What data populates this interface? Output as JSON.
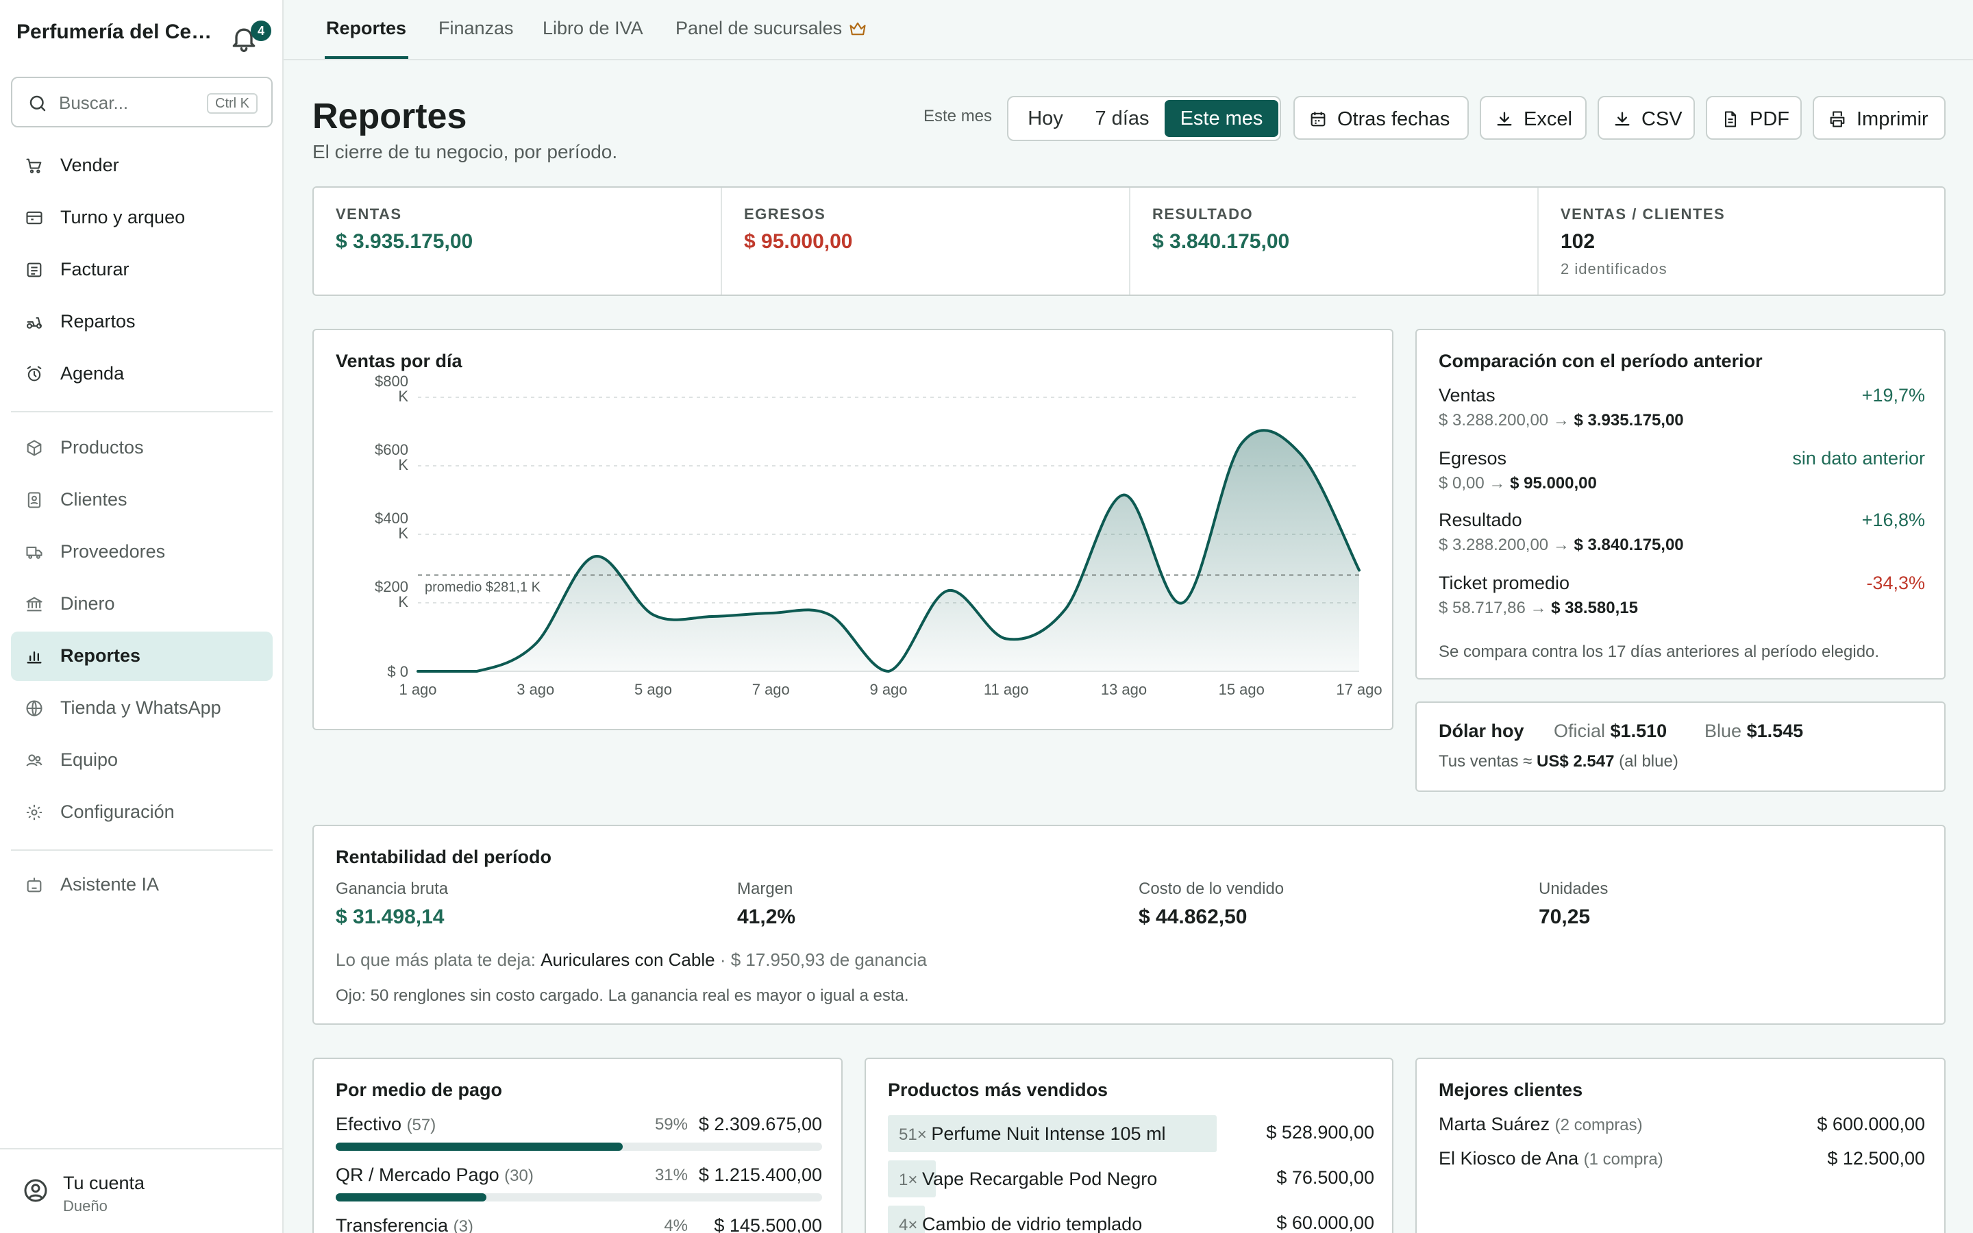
{
  "sidebar": {
    "brand": "Perfumería del Centro",
    "notifications": "4",
    "search_placeholder": "Buscar...",
    "search_shortcut": "Ctrl K",
    "items": [
      {
        "label": "Vender",
        "icon": "cart-icon"
      },
      {
        "label": "Turno y arqueo",
        "icon": "register-icon"
      },
      {
        "label": "Facturar",
        "icon": "receipt-icon"
      },
      {
        "label": "Repartos",
        "icon": "scooter-icon"
      },
      {
        "label": "Agenda",
        "icon": "alarm-clock-icon"
      },
      {
        "label": "Productos",
        "icon": "box-icon"
      },
      {
        "label": "Clientes",
        "icon": "contact-icon"
      },
      {
        "label": "Proveedores",
        "icon": "truck-icon"
      },
      {
        "label": "Dinero",
        "icon": "bank-icon"
      },
      {
        "label": "Reportes",
        "icon": "bar-chart-icon"
      },
      {
        "label": "Tienda y WhatsApp",
        "icon": "globe-icon"
      },
      {
        "label": "Equipo",
        "icon": "users-icon"
      },
      {
        "label": "Configuración",
        "icon": "gear-icon"
      },
      {
        "label": "Asistente IA",
        "icon": "robot-icon"
      }
    ],
    "account": {
      "name": "Tu cuenta",
      "role": "Dueño"
    }
  },
  "tabs": [
    "Reportes",
    "Finanzas",
    "Libro de IVA",
    "Panel de sucursales"
  ],
  "header": {
    "title": "Reportes",
    "subtitle": "El cierre de tu negocio, por período.",
    "range_label": "Este mes",
    "segments": [
      "Hoy",
      "7 días",
      "Este mes"
    ],
    "buttons": [
      "Otras fechas",
      "Excel",
      "CSV",
      "PDF",
      "Imprimir"
    ]
  },
  "kpis": [
    {
      "label": "VENTAS",
      "value": "$ 3.935.175,00"
    },
    {
      "label": "EGRESOS",
      "value": "$ 95.000,00"
    },
    {
      "label": "RESULTADO",
      "value": "$ 3.840.175,00"
    },
    {
      "label": "VENTAS / CLIENTES",
      "value": "102",
      "note": "2 identificados"
    }
  ],
  "chart_data": {
    "type": "area",
    "title": "Ventas por día",
    "x": [
      "1 ago",
      "2 ago",
      "3 ago",
      "4 ago",
      "5 ago",
      "6 ago",
      "7 ago",
      "8 ago",
      "9 ago",
      "10 ago",
      "11 ago",
      "12 ago",
      "13 ago",
      "14 ago",
      "15 ago",
      "16 ago",
      "17 ago"
    ],
    "values": [
      0,
      0,
      80,
      335,
      165,
      160,
      170,
      165,
      0,
      235,
      95,
      180,
      515,
      200,
      665,
      635,
      295
    ],
    "x_ticks": [
      "1 ago",
      "3 ago",
      "5 ago",
      "7 ago",
      "9 ago",
      "11 ago",
      "13 ago",
      "15 ago",
      "17 ago"
    ],
    "y_ticks": [
      {
        "v": 0,
        "l1": "$ 0",
        "l2": ""
      },
      {
        "v": 200,
        "l1": "$200",
        "l2": "K"
      },
      {
        "v": 400,
        "l1": "$400",
        "l2": "K"
      },
      {
        "v": 600,
        "l1": "$600",
        "l2": "K"
      },
      {
        "v": 800,
        "l1": "$800",
        "l2": "K"
      }
    ],
    "ylim": [
      0,
      800
    ],
    "average": 281.1,
    "average_label": "promedio $281,1 K",
    "grid": true
  },
  "comparison": {
    "title": "Comparación con el período anterior",
    "rows": [
      {
        "name": "Ventas",
        "pct": "+19,7%",
        "from": "$ 3.288.200,00",
        "to": "$ 3.935.175,00"
      },
      {
        "name": "Egresos",
        "pct": "sin dato anterior",
        "from": "$ 0,00",
        "to": "$ 95.000,00"
      },
      {
        "name": "Resultado",
        "pct": "+16,8%",
        "from": "$ 3.288.200,00",
        "to": "$ 3.840.175,00"
      },
      {
        "name": "Ticket promedio",
        "pct": "-34,3%",
        "from": "$ 58.717,86",
        "to": "$ 38.580,15"
      }
    ],
    "arrow": "→",
    "footnote": "Se compara contra los 17 días anteriores al período elegido."
  },
  "dollar": {
    "title": "Dólar hoy",
    "oficial_label": "Oficial",
    "oficial": "$1.510",
    "blue_label": "Blue",
    "blue": "$1.545",
    "note_prefix": "Tus ventas ≈",
    "note_value": "US$ 2.547",
    "note_suffix": "(al blue)"
  },
  "rentabilidad": {
    "title": "Rentabilidad del período",
    "cols": [
      {
        "label": "Ganancia bruta",
        "value": "$ 31.498,14"
      },
      {
        "label": "Margen",
        "value": "41,2%"
      },
      {
        "label": "Costo de lo vendido",
        "value": "$ 44.862,50"
      },
      {
        "label": "Unidades",
        "value": "70,25"
      }
    ],
    "best_prefix": "Lo que más plata te deja:",
    "best_product": "Auriculares con Cable",
    "best_suffix": "· $ 17.950,93 de ganancia",
    "warning": "Ojo: 50 renglones sin costo cargado. La ganancia real es mayor o igual a esta."
  },
  "payments": {
    "title": "Por medio de pago",
    "rows": [
      {
        "name": "Efectivo",
        "count": "(57)",
        "pct": "59%",
        "amount": "$ 2.309.675,00",
        "share": 0.59
      },
      {
        "name": "QR / Mercado Pago",
        "count": "(30)",
        "pct": "31%",
        "amount": "$ 1.215.400,00",
        "share": 0.31
      },
      {
        "name": "Transferencia",
        "count": "(3)",
        "pct": "4%",
        "amount": "$ 145.500,00",
        "share": 0.04
      }
    ]
  },
  "products": {
    "title": "Productos más vendidos",
    "rows": [
      {
        "qty": "51×",
        "name": "Perfume Nuit Intense 105 ml",
        "amount": "$ 528.900,00",
        "share": 1.0
      },
      {
        "qty": "1×",
        "name": "Vape Recargable Pod Negro",
        "amount": "$ 76.500,00",
        "share": 0.145
      },
      {
        "qty": "4×",
        "name": "Cambio de vidrio templado",
        "amount": "$ 60.000,00",
        "share": 0.113
      }
    ]
  },
  "clients": {
    "title": "Mejores clientes",
    "rows": [
      {
        "name": "Marta Suárez",
        "count": "(2 compras)",
        "amount": "$ 600.000,00"
      },
      {
        "name": "El Kiosco de Ana",
        "count": "(1 compra)",
        "amount": "$ 12.500,00"
      }
    ]
  },
  "colors": {
    "accent": "#0d5a52",
    "positive": "#1f6b57",
    "negative": "#c0392b"
  }
}
